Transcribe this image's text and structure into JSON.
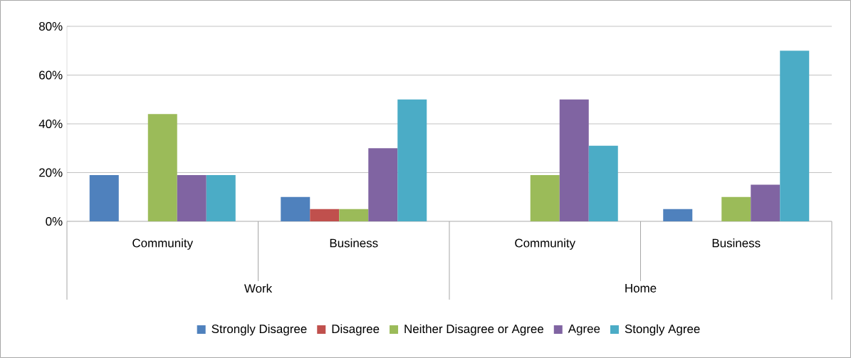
{
  "chart_data": {
    "type": "bar",
    "categories": [
      "Community",
      "Business",
      "Community",
      "Business"
    ],
    "annotations": [
      "Work",
      "Home"
    ],
    "series": [
      {
        "name": "Strongly Disagree",
        "color": "#4f81bd",
        "values": [
          19,
          10,
          0,
          5
        ]
      },
      {
        "name": "Disagree",
        "color": "#c0504d",
        "values": [
          0,
          5,
          0,
          0
        ]
      },
      {
        "name": "Neither Disagree or Agree",
        "color": "#9bbb59",
        "values": [
          44,
          5,
          19,
          10
        ]
      },
      {
        "name": "Agree",
        "color": "#8064a2",
        "values": [
          19,
          30,
          50,
          15
        ]
      },
      {
        "name": "Stongly Agree",
        "color": "#4bacc6",
        "values": [
          19,
          50,
          31,
          70
        ]
      }
    ],
    "ylim": [
      0,
      80
    ],
    "yticks": [
      {
        "value": 0,
        "label": "0%"
      },
      {
        "value": 20,
        "label": "20%"
      },
      {
        "value": 40,
        "label": "40%"
      },
      {
        "value": 60,
        "label": "60%"
      },
      {
        "value": 80,
        "label": "80%"
      }
    ],
    "grid": "y",
    "legend": "bottom"
  }
}
